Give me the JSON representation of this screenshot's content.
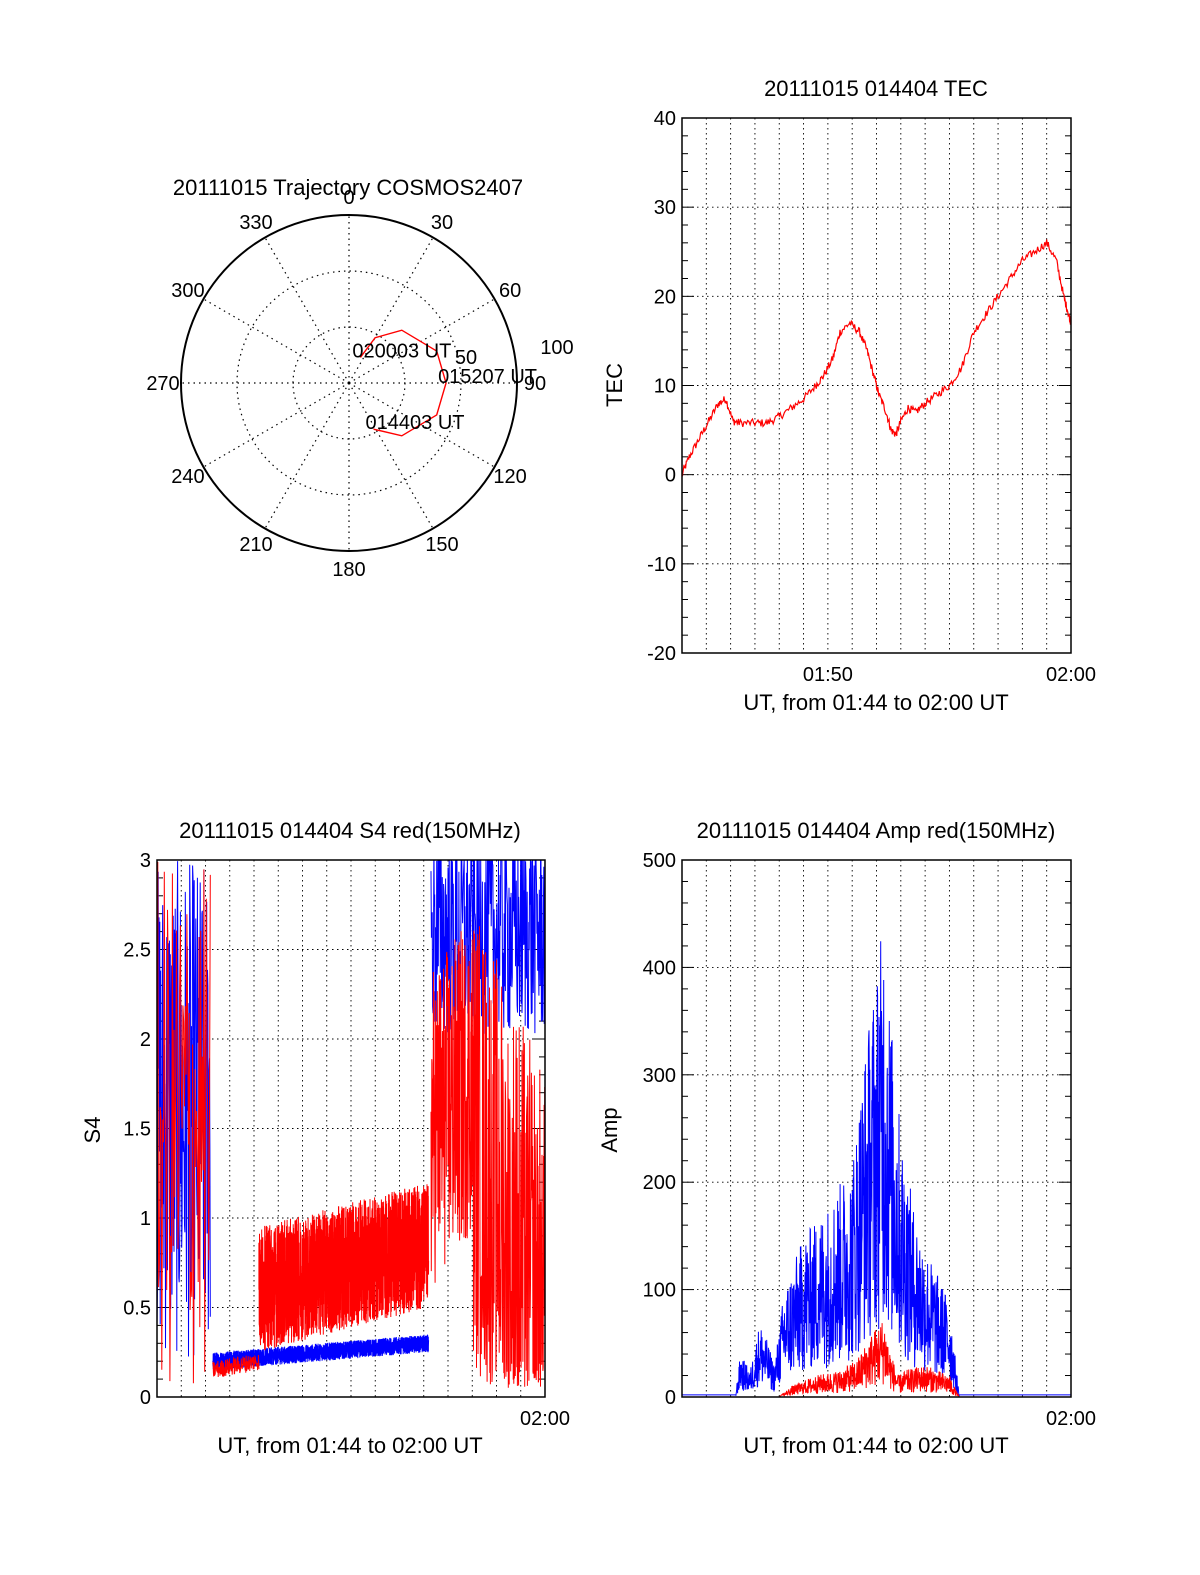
{
  "colors": {
    "red": "#ff0000",
    "blue": "#0000ff",
    "grid": "#000000"
  },
  "chart_data": [
    {
      "id": "trajectory",
      "type": "polar",
      "title": "20111015 Trajectory COSMOS2407",
      "angle_labels": [
        "0",
        "30",
        "60",
        "90",
        "120",
        "150",
        "180",
        "210",
        "240",
        "270",
        "300",
        "330"
      ],
      "elevation_labels": [
        "50",
        "100"
      ],
      "elevation_rings": [
        30,
        60
      ],
      "series": [
        {
          "color": "red",
          "points": [
            [
              24,
              75
            ],
            [
              30,
              62
            ],
            [
              45,
              50
            ],
            [
              70,
              40
            ],
            [
              90,
              38
            ],
            [
              110,
              40
            ],
            [
              135,
              50
            ],
            [
              152,
              62
            ]
          ]
        }
      ],
      "annotations": [
        {
          "text": "020003 UT",
          "az": 24,
          "el": 75
        },
        {
          "text": "015207 UT",
          "az": 90,
          "el": 38
        },
        {
          "text": "014403 UT",
          "az": 152,
          "el": 62
        }
      ]
    },
    {
      "id": "tec",
      "type": "line",
      "title": "20111015 014404 TEC",
      "xlabel": "UT, from 01:44 to 02:00 UT",
      "ylabel": "TEC",
      "xlim": [
        0,
        16
      ],
      "ylim": [
        -20,
        40
      ],
      "yticks": [
        -20,
        -10,
        0,
        10,
        20,
        30,
        40
      ],
      "xticks": [
        {
          "v": 6,
          "label": "01:50"
        },
        {
          "v": 16,
          "label": "02:00"
        }
      ],
      "xgrid_step": 1,
      "series": [
        {
          "color": "red",
          "x": [
            0,
            0.3,
            0.7,
            1.1,
            1.5,
            1.8,
            2.1,
            2.4,
            3.0,
            3.5,
            4.0,
            4.5,
            5.0,
            5.5,
            5.8,
            6.2,
            6.5,
            6.9,
            7.3,
            7.6,
            7.9,
            8.1,
            8.4,
            8.6,
            8.8,
            9.0,
            9.3,
            9.6,
            10.0,
            10.5,
            11.0,
            11.5,
            12.0,
            12.5,
            13.0,
            13.5,
            14.0,
            14.5,
            15.0,
            15.4,
            15.7,
            15.9,
            16.0
          ],
          "y": [
            0,
            2,
            4,
            6,
            8,
            8.5,
            6,
            5.8,
            5.8,
            5.8,
            6.5,
            7.5,
            8.5,
            10,
            11,
            13,
            16,
            17,
            16,
            14,
            11,
            9,
            7,
            5,
            4.5,
            6,
            7.5,
            7,
            8,
            9,
            10,
            12,
            16,
            18,
            20,
            22,
            24,
            25,
            26,
            24,
            20,
            18,
            17
          ]
        }
      ]
    },
    {
      "id": "s4",
      "type": "line",
      "title": "20111015 014404 S4 red(150MHz)",
      "xlabel": "UT, from 01:44 to 02:00 UT",
      "ylabel": "S4",
      "xlim": [
        0,
        16
      ],
      "ylim": [
        0,
        3
      ],
      "yticks": [
        0,
        0.5,
        1,
        1.5,
        2,
        2.5,
        3
      ],
      "xticks": [
        {
          "v": 16,
          "label": "02:00"
        }
      ],
      "xgrid_step": 1,
      "series": [
        {
          "color": "blue",
          "segments": [
            {
              "x": [
                0.0,
                2.2
              ],
              "y": [
                1.6,
                1.6
              ],
              "noise": 1.4,
              "freq": 60
            },
            {
              "x": [
                2.3,
                11.2
              ],
              "y": [
                0.2,
                0.3
              ],
              "noise": 0.05,
              "freq": 300
            },
            {
              "x": [
                11.3,
                16.0
              ],
              "y": [
                2.6,
                2.6
              ],
              "noise": 0.6,
              "freq": 60
            }
          ]
        },
        {
          "color": "red",
          "segments": [
            {
              "x": [
                0.0,
                2.2
              ],
              "y": [
                1.5,
                1.5
              ],
              "noise": 1.5,
              "freq": 30
            },
            {
              "x": [
                2.3,
                4.2
              ],
              "y": [
                0.15,
                0.2
              ],
              "noise": 0.05,
              "freq": 80
            },
            {
              "x": [
                4.2,
                11.2
              ],
              "y": [
                0.6,
                0.85
              ],
              "noise": 0.35,
              "freq": 280
            },
            {
              "x": [
                11.3,
                13.0
              ],
              "y": [
                1.5,
                1.8
              ],
              "noise": 0.9,
              "freq": 100
            },
            {
              "x": [
                13.0,
                16.0
              ],
              "y": [
                1.5,
                0.5
              ],
              "noise": 1.3,
              "freq": 80
            }
          ]
        }
      ]
    },
    {
      "id": "amp",
      "type": "line",
      "title": "20111015 014404 Amp red(150MHz)",
      "xlabel": "UT, from 01:44 to 02:00 UT",
      "ylabel": "Amp",
      "xlim": [
        0,
        16
      ],
      "ylim": [
        0,
        500
      ],
      "yticks": [
        0,
        100,
        200,
        300,
        400,
        500
      ],
      "xticks": [
        {
          "v": 16,
          "label": "02:00"
        }
      ],
      "xgrid_step": 1,
      "series": [
        {
          "color": "blue",
          "envelope": {
            "x": [
              0,
              2.2,
              2.4,
              2.8,
              3.2,
              3.4,
              3.8,
              4.2,
              5.0,
              6.0,
              7.0,
              7.5,
              8.0,
              8.3,
              8.6,
              9.0,
              9.5,
              10.0,
              10.6,
              11.0,
              11.4,
              16.0
            ],
            "y": [
              2,
              2,
              40,
              25,
              70,
              60,
              30,
              100,
              150,
              180,
              220,
              320,
              400,
              450,
              350,
              250,
              180,
              140,
              110,
              90,
              2,
              2
            ]
          }
        },
        {
          "color": "red",
          "envelope": {
            "x": [
              0,
              4.0,
              4.5,
              5.5,
              6.5,
              7.2,
              7.8,
              8.3,
              8.6,
              8.9,
              9.2,
              10.0,
              11.0,
              11.4,
              16.0
            ],
            "y": [
              0,
              0,
              10,
              20,
              25,
              35,
              60,
              75,
              40,
              20,
              25,
              30,
              20,
              0,
              0
            ]
          }
        }
      ]
    }
  ]
}
